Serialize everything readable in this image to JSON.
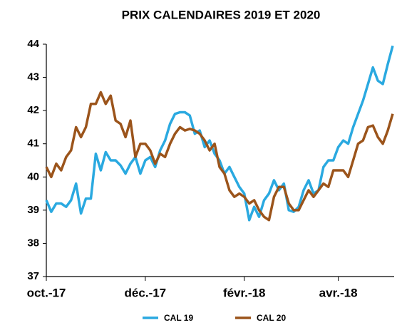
{
  "chart_data": {
    "type": "line",
    "title": "PRIX CALENDAIRES 2019 ET 2020",
    "categories": [
      "oct.-17",
      null,
      null,
      null,
      null,
      null,
      null,
      null,
      null,
      null,
      null,
      null,
      null,
      null,
      null,
      null,
      null,
      null,
      null,
      null,
      "déc.-17",
      null,
      null,
      null,
      null,
      null,
      null,
      null,
      null,
      null,
      null,
      null,
      null,
      null,
      null,
      null,
      null,
      null,
      null,
      null,
      "févr.-18",
      null,
      null,
      null,
      null,
      null,
      null,
      null,
      null,
      null,
      null,
      null,
      null,
      null,
      null,
      null,
      null,
      null,
      null,
      "avr.-18",
      null,
      null,
      null,
      null,
      null,
      null,
      null,
      null,
      null,
      null,
      null
    ],
    "series": [
      {
        "name": "CAL 19",
        "color": "#2aa9e0",
        "values": [
          39.3,
          38.95,
          39.2,
          39.2,
          39.1,
          39.3,
          39.8,
          38.9,
          39.35,
          39.35,
          40.7,
          40.2,
          40.75,
          40.5,
          40.5,
          40.35,
          40.1,
          40.4,
          40.6,
          40.1,
          40.5,
          40.6,
          40.3,
          40.8,
          41.1,
          41.6,
          41.9,
          41.95,
          41.95,
          41.85,
          41.3,
          41.4,
          40.9,
          41.1,
          40.7,
          40.5,
          40.1,
          40.3,
          40.0,
          39.7,
          39.5,
          38.7,
          39.1,
          38.8,
          39.3,
          39.5,
          39.9,
          39.6,
          39.8,
          39.0,
          38.95,
          39.1,
          39.6,
          39.9,
          39.5,
          39.6,
          40.3,
          40.5,
          40.5,
          40.9,
          41.1,
          41.0,
          41.5,
          41.9,
          42.3,
          42.8,
          43.3,
          42.9,
          42.8,
          43.4,
          43.95
        ]
      },
      {
        "name": "CAL 20",
        "color": "#9b541b",
        "values": [
          40.3,
          40.0,
          40.4,
          40.2,
          40.6,
          40.8,
          41.5,
          41.2,
          41.5,
          42.2,
          42.2,
          42.55,
          42.2,
          42.45,
          41.7,
          41.6,
          41.2,
          41.7,
          40.6,
          41.0,
          41.0,
          40.8,
          40.4,
          40.7,
          40.6,
          41.0,
          41.3,
          41.5,
          41.4,
          41.45,
          41.4,
          41.3,
          41.1,
          40.8,
          41.0,
          40.3,
          40.1,
          39.6,
          39.4,
          39.5,
          39.4,
          39.2,
          39.3,
          39.0,
          38.8,
          38.7,
          39.4,
          39.7,
          39.7,
          39.2,
          39.0,
          39.0,
          39.3,
          39.6,
          39.4,
          39.6,
          39.8,
          39.7,
          40.2,
          40.2,
          40.2,
          40.0,
          40.5,
          41.0,
          41.1,
          41.5,
          41.55,
          41.2,
          41.0,
          41.4,
          41.9
        ]
      }
    ],
    "ylim": [
      37,
      44
    ],
    "yticks": [
      37,
      38,
      39,
      40,
      41,
      42,
      43,
      44
    ]
  }
}
